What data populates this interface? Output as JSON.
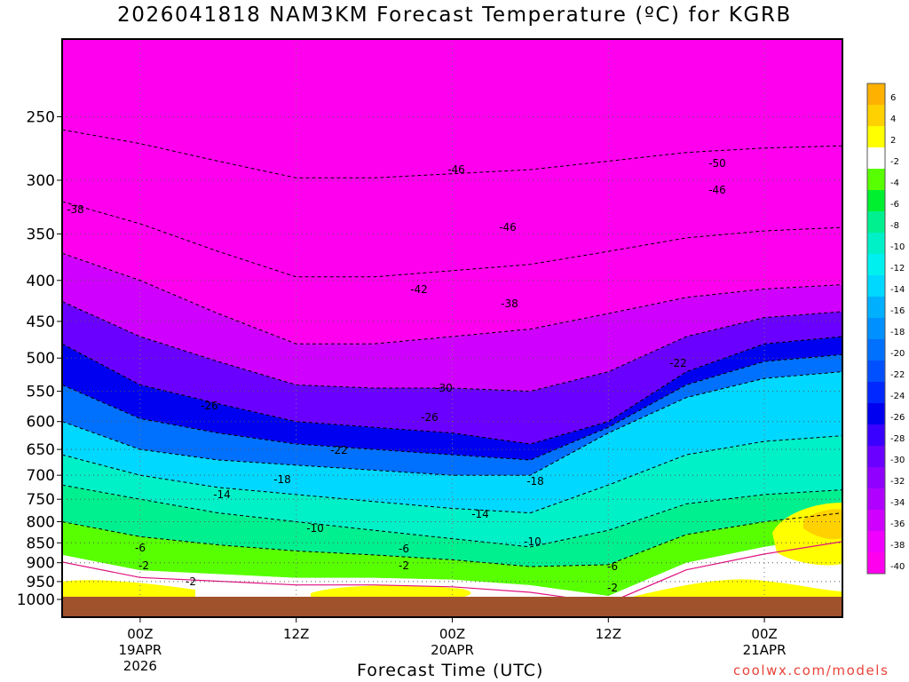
{
  "chart_data": {
    "type": "heatmap",
    "title": "2026041818 NAM3KM Forecast Temperature (ºC) for KGRB",
    "xlabel": "Forecast Time (UTC)",
    "ylabel": "",
    "y_scale": "log",
    "ylim": [
      1000,
      200
    ],
    "xlim_hours": [
      -6,
      54
    ],
    "y_ticks": [
      "250",
      "300",
      "350",
      "400",
      "450",
      "500",
      "550",
      "600",
      "650",
      "700",
      "750",
      "800",
      "850",
      "900",
      "950",
      "1000"
    ],
    "x_ticks": [
      {
        "hour": 0,
        "lines": [
          "00Z",
          "19APR",
          "2026"
        ]
      },
      {
        "hour": 12,
        "lines": [
          "12Z"
        ]
      },
      {
        "hour": 24,
        "lines": [
          "00Z",
          "20APR"
        ]
      },
      {
        "hour": 36,
        "lines": [
          "12Z"
        ]
      },
      {
        "hour": 48,
        "lines": [
          "00Z",
          "21APR"
        ]
      }
    ],
    "grid": true,
    "colorbar": {
      "placement": "right",
      "levels": [
        "6",
        "4",
        "2",
        "-2",
        "-4",
        "-6",
        "-8",
        "-10",
        "-12",
        "-14",
        "-16",
        "-18",
        "-20",
        "-22",
        "-24",
        "-26",
        "-28",
        "-30",
        "-32",
        "-34",
        "-36",
        "-38",
        "-40"
      ],
      "colors": [
        "#ffb100",
        "#ffd100",
        "#ffff00",
        "#ffffff",
        "#58ff00",
        "#00f030",
        "#00f090",
        "#00f0c8",
        "#00f0f0",
        "#00d8ff",
        "#00b0ff",
        "#0090ff",
        "#0070ff",
        "#0050ff",
        "#0028ff",
        "#0000f0",
        "#3a00ff",
        "#6a00ff",
        "#9000ff",
        "#b000ff",
        "#d000ff",
        "#f000ff",
        "#ff00ee"
      ]
    },
    "isotherm_profile": {
      "hours": [
        -6,
        0,
        6,
        12,
        18,
        24,
        30,
        36,
        42,
        48,
        54
      ],
      "temp_40_level_hPa": [
        370,
        400,
        440,
        480,
        480,
        470,
        460,
        440,
        420,
        410,
        405
      ],
      "temp_minus30_level_hPa": [
        480,
        540,
        570,
        600,
        610,
        620,
        640,
        600,
        520,
        480,
        470
      ],
      "temp_minus20_level_hPa": [
        600,
        650,
        670,
        680,
        690,
        700,
        700,
        620,
        560,
        530,
        520
      ],
      "temp_minus10_level_hPa": [
        720,
        750,
        780,
        800,
        820,
        840,
        860,
        820,
        760,
        740,
        730
      ],
      "temp_0_level_hPa": [
        880,
        920,
        930,
        940,
        940,
        945,
        960,
        990,
        900,
        860,
        830
      ]
    },
    "contour_labels": [
      "-50",
      "-46",
      "-46",
      "-46",
      "-42",
      "-38",
      "-38",
      "-30",
      "-26",
      "-26",
      "-22",
      "-22",
      "-18",
      "-18",
      "-14",
      "-14",
      "-10",
      "-10",
      "-6",
      "-6",
      "-6",
      "-2",
      "-2",
      "-2",
      "-2"
    ],
    "surface_color": "#a0522d",
    "warm_color": "#ffff00",
    "contour_style": "dashed"
  },
  "credit": "coolwx.com/models"
}
